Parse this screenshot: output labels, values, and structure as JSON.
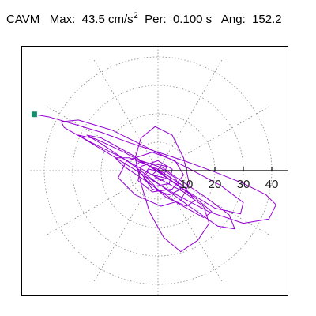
{
  "header": {
    "app_label": "CAVM",
    "max_label": "Max:",
    "max_value": "43.5 cm/s",
    "max_exponent": "2",
    "period_label": "Per:",
    "period_value": "0.100 s",
    "angle_label": "Ang:",
    "angle_value": "152.2"
  },
  "chart_data": {
    "type": "line",
    "coordinate_system": "polar",
    "grid": true,
    "r_max": 45,
    "ring_values": [
      10,
      20,
      30,
      40
    ],
    "spoke_angles_deg": [
      0,
      30,
      60,
      90,
      120,
      150,
      180,
      210,
      240,
      270,
      300,
      330
    ],
    "tick_labels": [
      "10",
      "20",
      "30",
      "40"
    ],
    "colors": {
      "trace": "#9400d3",
      "marker": "#1a8a6a",
      "grid": "#888888",
      "axis": "#000000"
    },
    "series": [
      {
        "points": [
          [
            -43.5,
            19.8
          ],
          [
            -38,
            18.8
          ],
          [
            -30,
            16.5
          ],
          [
            -20,
            13.5
          ],
          [
            -10,
            9.8
          ],
          [
            0,
            6.5
          ],
          [
            10,
            3.2
          ],
          [
            20,
            -0.5
          ],
          [
            30,
            -4.5
          ],
          [
            38,
            -8.5
          ],
          [
            41.5,
            -12
          ],
          [
            39,
            -17
          ],
          [
            30,
            -18.5
          ],
          [
            18,
            -14.5
          ],
          [
            6,
            -8.2
          ],
          [
            -5,
            -1.6
          ],
          [
            -16,
            5.2
          ],
          [
            -26,
            11.2
          ],
          [
            -33,
            15.2
          ],
          [
            -34,
            17.2
          ],
          [
            -28,
            17.8
          ],
          [
            -16,
            14.2
          ],
          [
            -2,
            7.2
          ],
          [
            10,
            1.2
          ],
          [
            22,
            -5.2
          ],
          [
            30,
            -11.2
          ],
          [
            29,
            -15.2
          ],
          [
            20,
            -13.2
          ],
          [
            9,
            -6.5
          ],
          [
            -1,
            0.5
          ],
          [
            -12,
            6.5
          ],
          [
            -22,
            11.2
          ],
          [
            -28,
            12.5
          ],
          [
            -24,
            10.2
          ],
          [
            -14,
            5.2
          ],
          [
            -2,
            -1.5
          ],
          [
            9,
            -7.5
          ],
          [
            16,
            -12.5
          ],
          [
            18,
            -18.5
          ],
          [
            14,
            -24.5
          ],
          [
            8,
            -28.5
          ],
          [
            2,
            -23.5
          ],
          [
            -3,
            -14.5
          ],
          [
            -6,
            -4.5
          ],
          [
            -8,
            4.5
          ],
          [
            -6,
            11.5
          ],
          [
            -1,
            15.5
          ],
          [
            5,
            12.5
          ],
          [
            9,
            4.5
          ],
          [
            11,
            -4.5
          ],
          [
            8,
            -10.5
          ],
          [
            1,
            -12.5
          ],
          [
            -8,
            -8.5
          ],
          [
            -14,
            -2.5
          ],
          [
            -11,
            3.5
          ],
          [
            -2,
            6.5
          ],
          [
            6,
            3.5
          ],
          [
            9,
            -1.5
          ],
          [
            5,
            -6.5
          ],
          [
            -2,
            -7.5
          ],
          [
            -7,
            -3.5
          ],
          [
            -6,
            1.5
          ],
          [
            0,
            3.5
          ],
          [
            5,
            0.5
          ],
          [
            4,
            -4.5
          ],
          [
            -1,
            -5.5
          ],
          [
            -5,
            -1.5
          ],
          [
            -2,
            2.5
          ],
          [
            3,
            1.5
          ],
          [
            2,
            -2.5
          ],
          [
            -2,
            -1.5
          ],
          [
            1,
            1.5
          ],
          [
            8,
            -3.5
          ],
          [
            17,
            -9.5
          ],
          [
            25,
            -15.5
          ],
          [
            27,
            -20.5
          ],
          [
            21,
            -19.5
          ],
          [
            11,
            -12.5
          ],
          [
            0,
            -4.5
          ],
          [
            -11,
            3.5
          ],
          [
            -20,
            9.5
          ],
          [
            -25,
            12.5
          ],
          [
            -20,
            11.5
          ],
          [
            -9,
            5.5
          ],
          [
            3,
            -2.5
          ],
          [
            13,
            -9.5
          ],
          [
            19,
            -14.5
          ],
          [
            16,
            -16.5
          ],
          [
            7,
            -11.5
          ],
          [
            -3,
            -4.5
          ],
          [
            -12,
            1.5
          ],
          [
            -15,
            4.5
          ],
          [
            -10,
            4.5
          ],
          [
            0,
            0.5
          ],
          [
            9,
            -5.5
          ],
          [
            13,
            -10.5
          ],
          [
            10,
            -12.5
          ],
          [
            3,
            -9.5
          ],
          [
            -4,
            -3.5
          ],
          [
            -8,
            1.5
          ],
          [
            -6,
            3.5
          ],
          [
            0,
            1.5
          ],
          [
            6,
            -2.5
          ],
          [
            8,
            -6.5
          ],
          [
            4,
            -8.5
          ],
          [
            -2,
            -6.5
          ],
          [
            -5,
            -2.5
          ],
          [
            -3,
            0.5
          ],
          [
            1,
            -0.5
          ],
          [
            3,
            -2.5
          ],
          [
            1,
            -3.5
          ],
          [
            -1,
            -2.5
          ],
          [
            0,
            -1.5
          ]
        ]
      }
    ]
  }
}
